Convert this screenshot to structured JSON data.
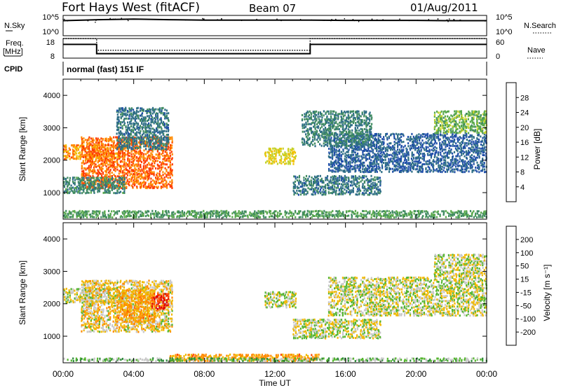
{
  "header": {
    "station": "Fort Hays West (fitACF)",
    "beam": "Beam 07",
    "date": "01/Aug/2011"
  },
  "top_panels": {
    "nsky_label": "N.Sky",
    "nsky_ticks": [
      "10^5",
      "10^0"
    ],
    "nsearch_label": "N.Search",
    "nsearch_ticks": [
      "10^5",
      "10^0"
    ],
    "freq_label": "Freq.",
    "freq_unit": "[MHz]",
    "freq_ticks": [
      "18",
      "8"
    ],
    "nave_label": "Nave",
    "nave_ticks": [
      "60",
      "0"
    ],
    "cpid_label": "CPID",
    "cpid_value": "normal (fast) 151 IF"
  },
  "colors": {
    "power_scale": [
      "#0000ff",
      "#1f4ea8",
      "#2e6e86",
      "#3f8a60",
      "#57a84a",
      "#c4d22a",
      "#f0c000",
      "#ff8a00",
      "#ff3c00",
      "#e00000"
    ],
    "velocity_scale": [
      "#e00000",
      "#ff4a00",
      "#ff8a00",
      "#f0b800",
      "#c8c8c8",
      "#c8c8c8",
      "#55b530",
      "#2e8a3a",
      "#2b5fa8",
      "#2030c8"
    ]
  },
  "chart_data": [
    {
      "type": "line",
      "title": "N.Sky / N.Search",
      "x_range_hours": [
        0,
        24
      ],
      "series": [
        {
          "name": "N.Sky",
          "x": [
            0,
            2,
            4,
            6,
            8,
            10,
            12,
            14,
            16,
            18,
            20,
            22,
            24
          ],
          "values": [
            5000,
            9000,
            12000,
            9000,
            7000,
            7000,
            7000,
            7000,
            6000,
            6000,
            6000,
            5000,
            5000
          ]
        },
        {
          "name": "N.Search",
          "x": [
            0,
            24
          ],
          "values": [
            1,
            1
          ]
        }
      ]
    },
    {
      "type": "line",
      "title": "Freq. / Nave",
      "ylim": [
        8,
        18
      ],
      "series": [
        {
          "name": "Freq.",
          "x": [
            0,
            1.9,
            1.9,
            14.0,
            14.0,
            24
          ],
          "values": [
            15,
            15,
            10.3,
            10.3,
            15,
            15
          ]
        },
        {
          "name": "Nave",
          "x": [
            0,
            1.9,
            1.9,
            14.0,
            14.0,
            24
          ],
          "values": [
            18,
            18,
            12,
            12,
            18,
            18
          ]
        }
      ]
    },
    {
      "type": "heatmap",
      "title": "",
      "xlabel": "Time UT",
      "ylabel": "Slant Range [km]",
      "colorbar_label": "Power [dB]",
      "colorbar_ticks": [
        "4",
        "8",
        "12",
        "16",
        "20",
        "24",
        "28"
      ],
      "value_range": [
        0,
        30
      ],
      "x_ticks": [
        "00:00",
        "04:00",
        "08:00",
        "12:00",
        "16:00",
        "20:00",
        "00:00"
      ],
      "y_ticks": [
        "1000",
        "2000",
        "3000",
        "4000"
      ],
      "ylim": [
        180,
        4500
      ],
      "xlim_hours": [
        0,
        24
      ],
      "bands": [
        {
          "t": [
            0,
            3.5
          ],
          "r": [
            2000,
            2450
          ],
          "value": 22
        },
        {
          "t": [
            1.0,
            6.2
          ],
          "r": [
            1100,
            2700
          ],
          "value": 24
        },
        {
          "t": [
            0,
            3.5
          ],
          "r": [
            950,
            1450
          ],
          "value": 10
        },
        {
          "t": [
            3.0,
            6.0
          ],
          "r": [
            2300,
            3600
          ],
          "value": 8
        },
        {
          "t": [
            11.4,
            13.2
          ],
          "r": [
            1850,
            2350
          ],
          "value": 18
        },
        {
          "t": [
            13.0,
            18.0
          ],
          "r": [
            900,
            1500
          ],
          "value": 8
        },
        {
          "t": [
            15.0,
            24.0
          ],
          "r": [
            1600,
            2800
          ],
          "value": 6
        },
        {
          "t": [
            13.5,
            17.5
          ],
          "r": [
            2400,
            3500
          ],
          "value": 9
        },
        {
          "t": [
            21.0,
            24.0
          ],
          "r": [
            2800,
            3500
          ],
          "value": 14
        },
        {
          "t": [
            0,
            24.0
          ],
          "r": [
            200,
            420
          ],
          "value": 12
        }
      ]
    },
    {
      "type": "heatmap",
      "title": "",
      "xlabel": "Time UT",
      "ylabel": "Slant Range [km]",
      "colorbar_label": "Velocity [m s⁻¹]",
      "colorbar_ticks": [
        "-200",
        "-100",
        "-50",
        "-15",
        "15",
        "50",
        "100",
        "200"
      ],
      "value_range": [
        -250,
        250
      ],
      "x_ticks": [
        "00:00",
        "04:00",
        "08:00",
        "12:00",
        "16:00",
        "20:00",
        "00:00"
      ],
      "y_ticks": [
        "1000",
        "2000",
        "3000",
        "4000"
      ],
      "ylim": [
        180,
        4500
      ],
      "xlim_hours": [
        0,
        24
      ],
      "bands": [
        {
          "t": [
            0,
            3.5
          ],
          "r": [
            2000,
            2450
          ],
          "value": 0
        },
        {
          "t": [
            1.0,
            6.2
          ],
          "r": [
            1100,
            2700
          ],
          "value": -20
        },
        {
          "t": [
            3.0,
            5.2
          ],
          "r": [
            1400,
            2400
          ],
          "value": -60
        },
        {
          "t": [
            5.0,
            6.0
          ],
          "r": [
            1800,
            2300
          ],
          "value": -200
        },
        {
          "t": [
            11.4,
            13.2
          ],
          "r": [
            1850,
            2350
          ],
          "value": 0
        },
        {
          "t": [
            13.0,
            18.0
          ],
          "r": [
            900,
            1500
          ],
          "value": 0
        },
        {
          "t": [
            15.0,
            24.0
          ],
          "r": [
            1600,
            2800
          ],
          "value": 0
        },
        {
          "t": [
            21.0,
            24.0
          ],
          "r": [
            2800,
            3500
          ],
          "value": 0
        },
        {
          "t": [
            6.0,
            14.5
          ],
          "r": [
            200,
            420
          ],
          "value": -60
        },
        {
          "t": [
            0,
            24.0
          ],
          "r": [
            200,
            300
          ],
          "value": 30
        }
      ]
    }
  ]
}
